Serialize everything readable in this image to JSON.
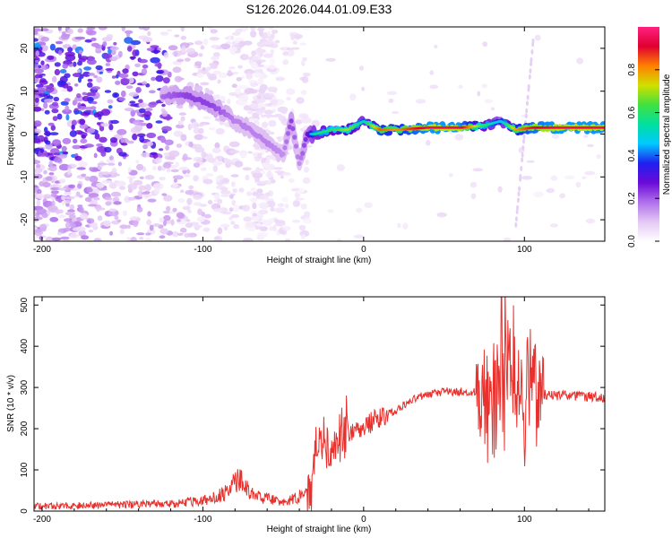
{
  "title": "S126.2026.044.01.09.E33",
  "colors": {
    "snr_line": "#e8302c",
    "axis": "#000000",
    "colormap": [
      "#ffffff",
      "#e4c8f4",
      "#b070ec",
      "#6a0ad8",
      "#2020f0",
      "#00c8ff",
      "#00e0a0",
      "#40e040",
      "#d0e000",
      "#ff8000",
      "#e00030",
      "#ff2080"
    ]
  },
  "chart_data": [
    {
      "type": "heatmap",
      "name": "spectrogram",
      "xlabel": "Height of straight line (km)",
      "ylabel": "Frequency (Hz)",
      "xlim": [
        -205,
        150
      ],
      "ylim": [
        -25,
        25
      ],
      "xticks": [
        -200,
        -100,
        0,
        100
      ],
      "yticks": [
        -20,
        -10,
        0,
        10,
        20
      ],
      "xtick_labels": [
        "-200",
        "-100",
        "0",
        "100"
      ],
      "ytick_labels": [
        "-20",
        "-10",
        "0",
        "10",
        "20"
      ],
      "colorbar": {
        "label": "Normalized spectral amplitude",
        "range": [
          0,
          1
        ],
        "ticks": [
          0.0,
          0.2,
          0.4,
          0.6,
          0.8
        ],
        "tick_labels": [
          "0.0",
          "0.2",
          "0.4",
          "0.6",
          "0.8"
        ]
      },
      "ridge": {
        "x": [
          -125,
          -110,
          -95,
          -80,
          -70,
          -60,
          -50,
          -45,
          -40,
          -35,
          -30,
          -20,
          -10,
          0,
          10,
          20,
          40,
          60,
          75,
          85,
          95,
          105,
          120,
          150
        ],
        "freq": [
          9,
          9,
          7,
          3,
          1,
          -2,
          -5,
          3,
          -7,
          0,
          0,
          1,
          1,
          3,
          1,
          1,
          1.5,
          1.5,
          2,
          3,
          1,
          1.5,
          1.5,
          1.5
        ],
        "amplitude": [
          0.25,
          0.3,
          0.3,
          0.22,
          0.22,
          0.22,
          0.2,
          0.3,
          0.2,
          0.35,
          0.55,
          0.6,
          0.7,
          0.5,
          0.85,
          0.8,
          0.95,
          0.95,
          0.6,
          0.45,
          0.8,
          0.9,
          0.95,
          0.95
        ]
      }
    },
    {
      "type": "line",
      "name": "snr",
      "xlabel": "Height of straight line (km)",
      "ylabel": "SNR (10 * v/v)",
      "xlim": [
        -205,
        150
      ],
      "ylim": [
        0,
        520
      ],
      "xticks": [
        -200,
        -100,
        0,
        100
      ],
      "yticks": [
        0,
        100,
        200,
        300,
        400,
        500
      ],
      "xtick_labels": [
        "-200",
        "-100",
        "0",
        "100"
      ],
      "ytick_labels": [
        "0",
        "100",
        "200",
        "300",
        "400",
        "500"
      ],
      "series": [
        {
          "name": "SNR",
          "x": [
            -205,
            -150,
            -120,
            -100,
            -85,
            -78,
            -70,
            -60,
            -50,
            -40,
            -33,
            -30,
            -25,
            -20,
            -15,
            -10,
            0,
            10,
            20,
            30,
            40,
            50,
            60,
            70,
            75,
            80,
            85,
            90,
            95,
            100,
            105,
            110,
            115,
            120,
            130,
            140,
            150
          ],
          "values": [
            12,
            15,
            18,
            25,
            45,
            80,
            40,
            30,
            20,
            35,
            50,
            150,
            180,
            150,
            160,
            190,
            210,
            225,
            245,
            270,
            285,
            290,
            290,
            288,
            285,
            300,
            320,
            380,
            300,
            320,
            310,
            285,
            280,
            280,
            280,
            278,
            275
          ]
        }
      ]
    }
  ]
}
